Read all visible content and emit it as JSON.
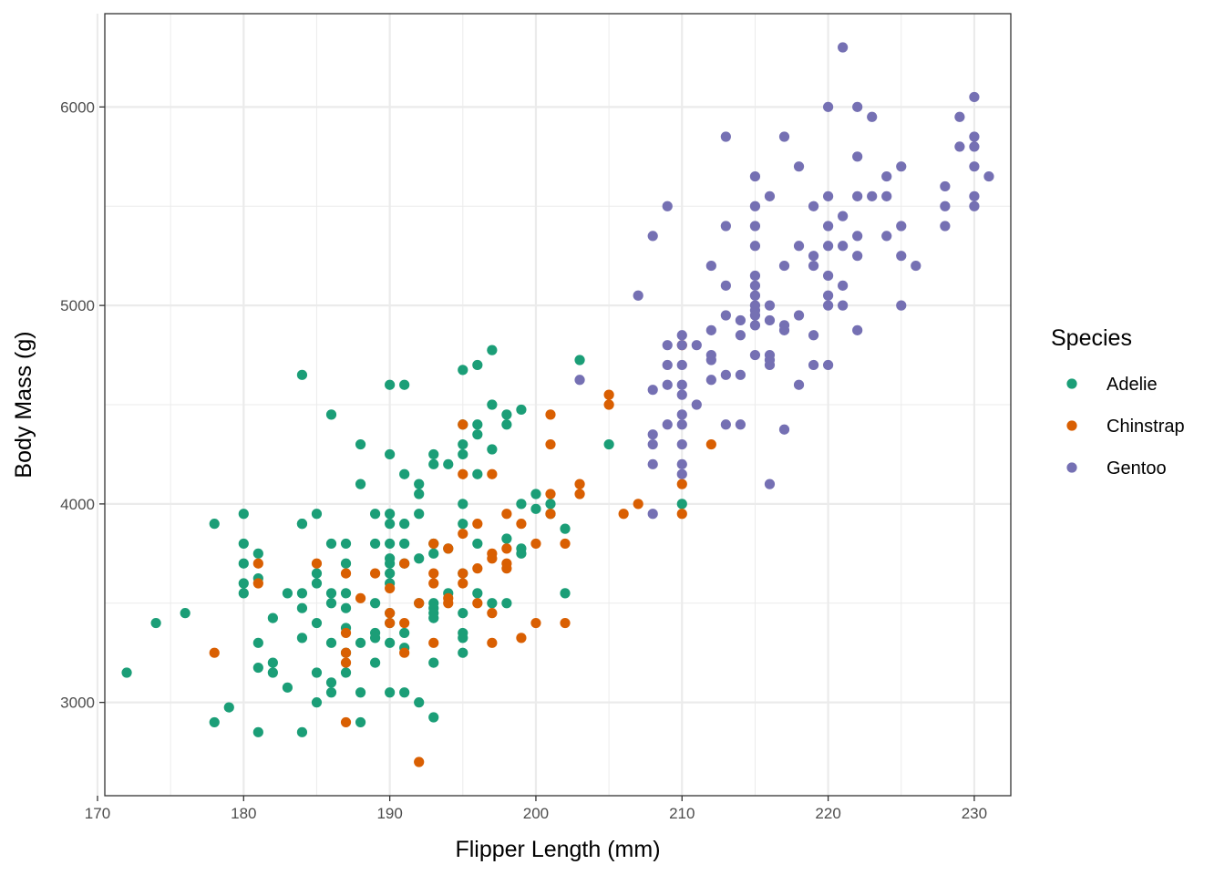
{
  "chart_data": {
    "type": "scatter",
    "title": "",
    "xlabel": "Flipper Length (mm)",
    "ylabel": "Body Mass (g)",
    "xlim": [
      170.5,
      232.5
    ],
    "ylim": [
      2530,
      6470
    ],
    "x_ticks": [
      "170",
      "180",
      "190",
      "200",
      "210",
      "220",
      "230"
    ],
    "y_ticks": [
      "3000",
      "4000",
      "5000",
      "6000"
    ],
    "grid": true,
    "legend": {
      "title": "Species",
      "position": "right"
    },
    "series": [
      {
        "name": "Adelie",
        "color": "#1b9e77",
        "points": [
          [
            172,
            3150
          ],
          [
            174,
            3400
          ],
          [
            176,
            3450
          ],
          [
            178,
            3900
          ],
          [
            178,
            2900
          ],
          [
            179,
            2975
          ],
          [
            180,
            3950
          ],
          [
            180,
            3800
          ],
          [
            180,
            3700
          ],
          [
            180,
            3600
          ],
          [
            180,
            3550
          ],
          [
            181,
            3750
          ],
          [
            181,
            3625
          ],
          [
            181,
            3300
          ],
          [
            181,
            3175
          ],
          [
            181,
            2850
          ],
          [
            182,
            3425
          ],
          [
            182,
            3200
          ],
          [
            182,
            3150
          ],
          [
            183,
            3550
          ],
          [
            183,
            3075
          ],
          [
            184,
            4650
          ],
          [
            184,
            3900
          ],
          [
            184,
            3900
          ],
          [
            184,
            3550
          ],
          [
            184,
            3475
          ],
          [
            184,
            3325
          ],
          [
            184,
            2850
          ],
          [
            185,
            3950
          ],
          [
            185,
            3650
          ],
          [
            185,
            3600
          ],
          [
            185,
            3400
          ],
          [
            185,
            3150
          ],
          [
            185,
            3000
          ],
          [
            186,
            4450
          ],
          [
            186,
            3800
          ],
          [
            186,
            3550
          ],
          [
            186,
            3500
          ],
          [
            186,
            3300
          ],
          [
            186,
            3100
          ],
          [
            186,
            3050
          ],
          [
            187,
            3800
          ],
          [
            187,
            3700
          ],
          [
            187,
            3550
          ],
          [
            187,
            3475
          ],
          [
            187,
            3375
          ],
          [
            187,
            3250
          ],
          [
            187,
            3150
          ],
          [
            188,
            4300
          ],
          [
            188,
            4100
          ],
          [
            188,
            3300
          ],
          [
            188,
            3050
          ],
          [
            188,
            2900
          ],
          [
            189,
            3950
          ],
          [
            189,
            3800
          ],
          [
            189,
            3500
          ],
          [
            189,
            3350
          ],
          [
            189,
            3325
          ],
          [
            189,
            3200
          ],
          [
            190,
            4600
          ],
          [
            190,
            4250
          ],
          [
            190,
            3950
          ],
          [
            190,
            3900
          ],
          [
            190,
            3800
          ],
          [
            190,
            3725
          ],
          [
            190,
            3700
          ],
          [
            190,
            3650
          ],
          [
            190,
            3600
          ],
          [
            190,
            3450
          ],
          [
            190,
            3400
          ],
          [
            190,
            3300
          ],
          [
            190,
            3050
          ],
          [
            191,
            4600
          ],
          [
            191,
            4150
          ],
          [
            191,
            3900
          ],
          [
            191,
            3800
          ],
          [
            191,
            3700
          ],
          [
            191,
            3350
          ],
          [
            191,
            3275
          ],
          [
            191,
            3050
          ],
          [
            192,
            4100
          ],
          [
            192,
            4050
          ],
          [
            192,
            3950
          ],
          [
            192,
            3725
          ],
          [
            192,
            3500
          ],
          [
            192,
            3000
          ],
          [
            193,
            4250
          ],
          [
            193,
            4200
          ],
          [
            193,
            3800
          ],
          [
            193,
            3750
          ],
          [
            193,
            3500
          ],
          [
            193,
            3475
          ],
          [
            193,
            3450
          ],
          [
            193,
            3425
          ],
          [
            193,
            3200
          ],
          [
            193,
            2925
          ],
          [
            194,
            4200
          ],
          [
            194,
            3775
          ],
          [
            194,
            3550
          ],
          [
            195,
            4675
          ],
          [
            195,
            4400
          ],
          [
            195,
            4300
          ],
          [
            195,
            4250
          ],
          [
            195,
            4000
          ],
          [
            195,
            3900
          ],
          [
            195,
            3650
          ],
          [
            195,
            3450
          ],
          [
            195,
            3350
          ],
          [
            195,
            3325
          ],
          [
            195,
            3250
          ],
          [
            196,
            4700
          ],
          [
            196,
            4400
          ],
          [
            196,
            4350
          ],
          [
            196,
            4150
          ],
          [
            196,
            3800
          ],
          [
            196,
            3550
          ],
          [
            197,
            4775
          ],
          [
            197,
            4500
          ],
          [
            197,
            4275
          ],
          [
            197,
            3500
          ],
          [
            198,
            4450
          ],
          [
            198,
            4400
          ],
          [
            198,
            3825
          ],
          [
            198,
            3500
          ],
          [
            199,
            4475
          ],
          [
            199,
            4000
          ],
          [
            199,
            3775
          ],
          [
            199,
            3750
          ],
          [
            200,
            4050
          ],
          [
            200,
            3975
          ],
          [
            201,
            4000
          ],
          [
            201,
            3950
          ],
          [
            202,
            3875
          ],
          [
            202,
            3550
          ],
          [
            203,
            4725
          ],
          [
            205,
            4300
          ],
          [
            210,
            4000
          ]
        ]
      },
      {
        "name": "Chinstrap",
        "color": "#d95f02",
        "points": [
          [
            178,
            3250
          ],
          [
            181,
            3700
          ],
          [
            181,
            3600
          ],
          [
            185,
            3700
          ],
          [
            187,
            3650
          ],
          [
            187,
            3350
          ],
          [
            187,
            3250
          ],
          [
            187,
            3200
          ],
          [
            187,
            2900
          ],
          [
            188,
            3525
          ],
          [
            189,
            3650
          ],
          [
            190,
            3575
          ],
          [
            190,
            3450
          ],
          [
            190,
            3400
          ],
          [
            191,
            3700
          ],
          [
            191,
            3400
          ],
          [
            191,
            3250
          ],
          [
            192,
            3500
          ],
          [
            192,
            2700
          ],
          [
            193,
            3800
          ],
          [
            193,
            3650
          ],
          [
            193,
            3600
          ],
          [
            193,
            3300
          ],
          [
            194,
            3775
          ],
          [
            194,
            3525
          ],
          [
            194,
            3500
          ],
          [
            195,
            4400
          ],
          [
            195,
            4150
          ],
          [
            195,
            3850
          ],
          [
            195,
            3650
          ],
          [
            195,
            3600
          ],
          [
            196,
            3900
          ],
          [
            196,
            3675
          ],
          [
            196,
            3500
          ],
          [
            197,
            4150
          ],
          [
            197,
            3750
          ],
          [
            197,
            3725
          ],
          [
            197,
            3450
          ],
          [
            197,
            3300
          ],
          [
            198,
            3950
          ],
          [
            198,
            3775
          ],
          [
            198,
            3700
          ],
          [
            198,
            3675
          ],
          [
            199,
            3900
          ],
          [
            199,
            3325
          ],
          [
            200,
            3800
          ],
          [
            200,
            3400
          ],
          [
            201,
            4450
          ],
          [
            201,
            4300
          ],
          [
            201,
            4050
          ],
          [
            201,
            3950
          ],
          [
            202,
            3800
          ],
          [
            202,
            3400
          ],
          [
            203,
            4100
          ],
          [
            203,
            4050
          ],
          [
            205,
            4550
          ],
          [
            205,
            4500
          ],
          [
            206,
            3950
          ],
          [
            207,
            4000
          ],
          [
            210,
            4800
          ],
          [
            210,
            4100
          ],
          [
            210,
            3950
          ],
          [
            212,
            4300
          ]
        ]
      },
      {
        "name": "Gentoo",
        "color": "#7570b3",
        "points": [
          [
            203,
            4625
          ],
          [
            207,
            5050
          ],
          [
            208,
            5350
          ],
          [
            208,
            4575
          ],
          [
            208,
            4350
          ],
          [
            208,
            4300
          ],
          [
            208,
            4200
          ],
          [
            208,
            3950
          ],
          [
            209,
            5500
          ],
          [
            209,
            4800
          ],
          [
            209,
            4700
          ],
          [
            209,
            4600
          ],
          [
            209,
            4400
          ],
          [
            210,
            4850
          ],
          [
            210,
            4800
          ],
          [
            210,
            4700
          ],
          [
            210,
            4600
          ],
          [
            210,
            4550
          ],
          [
            210,
            4450
          ],
          [
            210,
            4400
          ],
          [
            210,
            4300
          ],
          [
            210,
            4200
          ],
          [
            210,
            4150
          ],
          [
            211,
            4800
          ],
          [
            211,
            4500
          ],
          [
            212,
            5200
          ],
          [
            212,
            4875
          ],
          [
            212,
            4750
          ],
          [
            212,
            4725
          ],
          [
            212,
            4625
          ],
          [
            213,
            5850
          ],
          [
            213,
            5400
          ],
          [
            213,
            5100
          ],
          [
            213,
            4950
          ],
          [
            213,
            4650
          ],
          [
            213,
            4400
          ],
          [
            214,
            4925
          ],
          [
            214,
            4850
          ],
          [
            214,
            4650
          ],
          [
            214,
            4400
          ],
          [
            215,
            5650
          ],
          [
            215,
            5500
          ],
          [
            215,
            5400
          ],
          [
            215,
            5300
          ],
          [
            215,
            5150
          ],
          [
            215,
            5100
          ],
          [
            215,
            5050
          ],
          [
            215,
            5000
          ],
          [
            215,
            4975
          ],
          [
            215,
            4950
          ],
          [
            215,
            4900
          ],
          [
            215,
            4750
          ],
          [
            216,
            5550
          ],
          [
            216,
            5000
          ],
          [
            216,
            4925
          ],
          [
            216,
            4750
          ],
          [
            216,
            4725
          ],
          [
            216,
            4700
          ],
          [
            216,
            4100
          ],
          [
            217,
            5850
          ],
          [
            217,
            5200
          ],
          [
            217,
            4900
          ],
          [
            217,
            4875
          ],
          [
            217,
            4375
          ],
          [
            218,
            5700
          ],
          [
            218,
            5300
          ],
          [
            218,
            4950
          ],
          [
            218,
            4600
          ],
          [
            219,
            5500
          ],
          [
            219,
            5250
          ],
          [
            219,
            5200
          ],
          [
            219,
            4850
          ],
          [
            219,
            4700
          ],
          [
            220,
            6000
          ],
          [
            220,
            5550
          ],
          [
            220,
            5400
          ],
          [
            220,
            5300
          ],
          [
            220,
            5150
          ],
          [
            220,
            5050
          ],
          [
            220,
            5000
          ],
          [
            220,
            4700
          ],
          [
            221,
            6300
          ],
          [
            221,
            5450
          ],
          [
            221,
            5300
          ],
          [
            221,
            5100
          ],
          [
            221,
            5000
          ],
          [
            222,
            6000
          ],
          [
            222,
            5750
          ],
          [
            222,
            5550
          ],
          [
            222,
            5350
          ],
          [
            222,
            5250
          ],
          [
            222,
            4875
          ],
          [
            223,
            5950
          ],
          [
            223,
            5550
          ],
          [
            224,
            5650
          ],
          [
            224,
            5550
          ],
          [
            224,
            5350
          ],
          [
            225,
            5700
          ],
          [
            225,
            5400
          ],
          [
            225,
            5250
          ],
          [
            225,
            5000
          ],
          [
            226,
            5200
          ],
          [
            228,
            5600
          ],
          [
            228,
            5500
          ],
          [
            228,
            5400
          ],
          [
            229,
            5950
          ],
          [
            229,
            5800
          ],
          [
            230,
            6050
          ],
          [
            230,
            5850
          ],
          [
            230,
            5800
          ],
          [
            230,
            5700
          ],
          [
            230,
            5550
          ],
          [
            230,
            5500
          ],
          [
            231,
            5650
          ]
        ]
      }
    ]
  }
}
